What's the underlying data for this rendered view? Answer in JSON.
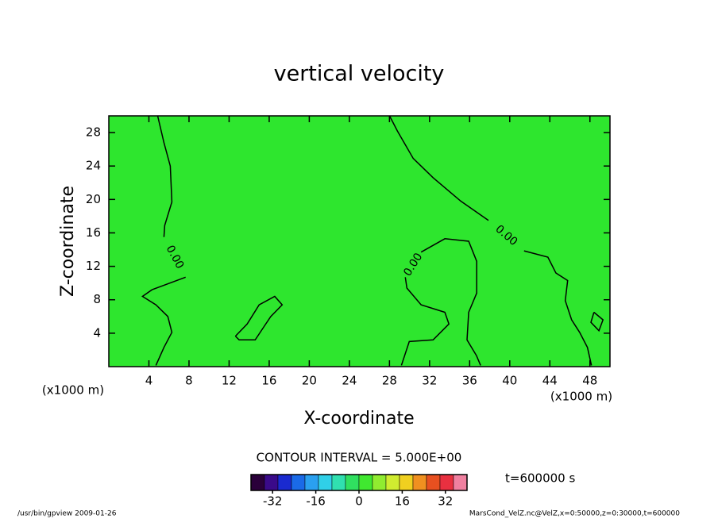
{
  "chart_data": {
    "type": "contour",
    "title": "vertical velocity",
    "x_label": "X-coordinate",
    "y_label": "Z-coordinate",
    "x_unit": "(x1000 m)",
    "y_unit": "(x1000 m)",
    "xlim": [
      0,
      50
    ],
    "ylim": [
      0,
      30
    ],
    "xticks": [
      4,
      8,
      12,
      16,
      20,
      24,
      28,
      32,
      36,
      40,
      44,
      48
    ],
    "yticks": [
      4,
      8,
      12,
      16,
      20,
      24,
      28
    ],
    "fill_color": "#2ee62e",
    "line_color": "#000000",
    "contours": [
      {
        "level": 0,
        "label": "0.00",
        "x": [
          4.87,
          5.5,
          6.13,
          6.29,
          5.58,
          5.5,
          null,
          7.66,
          4.31,
          3.36,
          4.7,
          5.89,
          6.29,
          5.5,
          4.7
        ],
        "y": [
          30,
          26.8,
          24.0,
          19.7,
          16.9,
          15.5,
          null,
          10.7,
          9.2,
          8.4,
          7.4,
          6.0,
          4.1,
          2.3,
          0.15
        ]
      },
      {
        "level": 0,
        "label": "0.00",
        "x": [
          28.01,
          28.79,
          30.37,
          32.35,
          35.11,
          37.88,
          null,
          41.43,
          43.8,
          44.6,
          45.78,
          45.54,
          46.17,
          46.97,
          47.75,
          48.15
        ],
        "y": [
          30,
          28.2,
          24.9,
          22.6,
          19.8,
          17.5,
          null,
          13.85,
          13.1,
          11.2,
          10.3,
          7.9,
          5.6,
          4.1,
          2.3,
          0.15
        ]
      },
      {
        "level": 0,
        "label": "0.00",
        "x": [
          29.19,
          29.98,
          32.35,
          33.93,
          33.53,
          31.16,
          29.74,
          29.58,
          null,
          31.16,
          33.53,
          35.9,
          36.7,
          36.7,
          35.9,
          35.74,
          36.69,
          37.09
        ],
        "y": [
          0.15,
          3.0,
          3.2,
          5.1,
          6.5,
          7.4,
          9.4,
          10.7,
          null,
          13.7,
          15.3,
          15.0,
          12.6,
          8.8,
          6.5,
          3.2,
          1.3,
          0.15
        ]
      },
      {
        "level": 0,
        "x": [
          12.63,
          13.8,
          15.0,
          16.55,
          17.3,
          16.16,
          15.38,
          14.6,
          13.0,
          12.63
        ],
        "y": [
          3.65,
          5.1,
          7.4,
          8.4,
          7.4,
          6.0,
          4.6,
          3.2,
          3.2,
          3.65
        ]
      },
      {
        "level": 0,
        "x": [
          48.4,
          49.3,
          48.9,
          48.1,
          48.4
        ],
        "y": [
          6.5,
          5.6,
          4.3,
          5.3,
          6.5
        ]
      }
    ],
    "contour_interval": "CONTOUR INTERVAL = 5.000E+00",
    "time_label": "t=600000 s",
    "colorbar": {
      "lim": [
        -40,
        40
      ],
      "ticks": [
        -32,
        -16,
        0,
        16,
        32
      ],
      "levels": [
        -40,
        -35,
        -30,
        -25,
        -20,
        -15,
        -10,
        -5,
        0,
        5,
        10,
        15,
        20,
        25,
        30,
        35,
        40
      ],
      "colors": [
        "#2a003a",
        "#3a0a8a",
        "#1a2ad0",
        "#1a6ae8",
        "#2aa0f0",
        "#30d0e8",
        "#30e0b0",
        "#30e060",
        "#40e830",
        "#90ec30",
        "#d0ec30",
        "#f0d020",
        "#f09020",
        "#e85020",
        "#e83040",
        "#f080a0"
      ]
    },
    "footer_left": "/usr/bin/gpview  2009-01-26",
    "footer_right": "MarsCond_VelZ.nc@VelZ,x=0:50000,z=0:30000,t=600000"
  }
}
